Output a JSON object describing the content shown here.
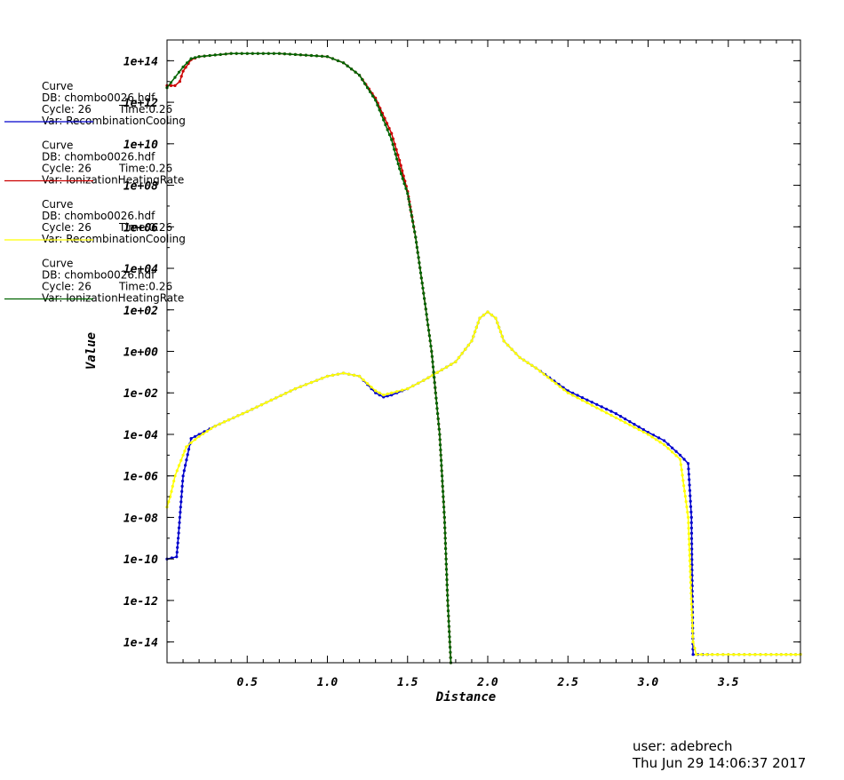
{
  "chart_data": {
    "type": "line",
    "xlabel": "Distance",
    "ylabel": "Value",
    "yscale": "log",
    "xlim": [
      0.0,
      3.95
    ],
    "ylim_exp": [
      -15,
      15
    ],
    "x_ticks": [
      "0.5",
      "1.0",
      "1.5",
      "2.0",
      "2.5",
      "3.0",
      "3.5"
    ],
    "y_ticks": [
      "1e-14",
      "1e-12",
      "1e-10",
      "1e-08",
      "1e-06",
      "1e-04",
      "1e-02",
      "1e+00",
      "1e+02",
      "1e+04",
      "1e+06",
      "1e+08",
      "1e+10",
      "1e+12",
      "1e+14"
    ],
    "legend_placement": "left, outside plot",
    "legend": [
      {
        "title": "Curve",
        "db": "DB: chombo0026.hdf",
        "cycle": "Cycle: 26",
        "time": "Time:0.26",
        "var": "Var: RecombinationCooling",
        "color": "#0000cc"
      },
      {
        "title": "Curve",
        "db": "DB: chombo0026.hdf",
        "cycle": "Cycle: 26",
        "time": "Time:0.26",
        "var": "Var: IonizationHeatingRate",
        "color": "#cc0000"
      },
      {
        "title": "Curve",
        "db": "DB: chombo0026.hdf",
        "cycle": "Cycle: 26",
        "time": "Time:0.26",
        "var": "Var: RecombinationCooling",
        "color": "#ffff00"
      },
      {
        "title": "Curve",
        "db": "DB: chombo0026.hdf",
        "cycle": "Cycle: 26",
        "time": "Time:0.26",
        "var": "Var: IonizationHeatingRate",
        "color": "#006400"
      }
    ],
    "series": [
      {
        "color": "#0000cc",
        "log10_values": true,
        "x": [
          0.0,
          0.06,
          0.07,
          0.1,
          0.15,
          0.2,
          0.3,
          0.5,
          0.8,
          1.0,
          1.1,
          1.2,
          1.3,
          1.35,
          1.4,
          1.5,
          1.6,
          1.8,
          1.9,
          1.95,
          2.0,
          2.05,
          2.1,
          2.2,
          2.3,
          2.5,
          2.8,
          3.0,
          3.1,
          3.2,
          3.25,
          3.27,
          3.28,
          3.4,
          3.6,
          3.8,
          3.95
        ],
        "y": [
          -10.0,
          -9.9,
          -9.0,
          -6.0,
          -4.2,
          -4.0,
          -3.6,
          -2.9,
          -1.8,
          -1.2,
          -1.05,
          -1.2,
          -2.0,
          -2.2,
          -2.1,
          -1.8,
          -1.4,
          -0.5,
          0.5,
          1.6,
          1.9,
          1.6,
          0.5,
          -0.3,
          -0.8,
          -1.9,
          -3.0,
          -3.9,
          -4.3,
          -5.0,
          -5.4,
          -8.0,
          -14.6,
          -14.6,
          -14.6,
          -14.6,
          -14.6
        ]
      },
      {
        "color": "#cc0000",
        "log10_values": true,
        "x": [
          0.0,
          0.05,
          0.08,
          0.1,
          0.15,
          0.2,
          0.4,
          0.7,
          1.0,
          1.1,
          1.2,
          1.3,
          1.4,
          1.45,
          1.5,
          1.55,
          1.6,
          1.65,
          1.7,
          1.73,
          1.75,
          1.77
        ],
        "y": [
          12.8,
          12.8,
          13.0,
          13.5,
          14.05,
          14.2,
          14.35,
          14.35,
          14.2,
          13.9,
          13.3,
          12.2,
          10.5,
          9.2,
          7.7,
          5.5,
          2.8,
          0.0,
          -4.0,
          -8.0,
          -12.0,
          -15.0
        ]
      },
      {
        "color": "#ffff00",
        "log10_values": true,
        "x": [
          0.0,
          0.02,
          0.05,
          0.1,
          0.12,
          0.15,
          0.2,
          0.3,
          0.5,
          0.8,
          1.0,
          1.1,
          1.2,
          1.3,
          1.35,
          1.4,
          1.5,
          1.6,
          1.8,
          1.9,
          1.95,
          2.0,
          2.05,
          2.1,
          2.2,
          2.3,
          2.5,
          2.8,
          3.0,
          3.1,
          3.2,
          3.25,
          3.28,
          3.3,
          3.4,
          3.6,
          3.8,
          3.95
        ],
        "y": [
          -7.5,
          -7.0,
          -6.0,
          -5.0,
          -4.6,
          -4.4,
          -4.1,
          -3.6,
          -2.9,
          -1.8,
          -1.2,
          -1.05,
          -1.2,
          -1.9,
          -2.1,
          -2.0,
          -1.8,
          -1.4,
          -0.5,
          0.5,
          1.6,
          1.9,
          1.6,
          0.5,
          -0.3,
          -0.8,
          -2.0,
          -3.2,
          -4.0,
          -4.5,
          -5.2,
          -8.0,
          -14.0,
          -14.6,
          -14.6,
          -14.6,
          -14.6,
          -14.6
        ]
      },
      {
        "color": "#006400",
        "log10_values": true,
        "x": [
          0.0,
          0.05,
          0.1,
          0.15,
          0.2,
          0.4,
          0.7,
          1.0,
          1.1,
          1.2,
          1.3,
          1.4,
          1.45,
          1.5,
          1.55,
          1.6,
          1.65,
          1.7,
          1.73,
          1.75,
          1.77
        ],
        "y": [
          12.7,
          13.2,
          13.7,
          14.1,
          14.2,
          14.35,
          14.35,
          14.2,
          13.9,
          13.3,
          12.1,
          10.2,
          8.8,
          7.6,
          5.5,
          2.8,
          0.0,
          -4.0,
          -8.0,
          -12.0,
          -15.0
        ]
      }
    ]
  },
  "footer": {
    "user": "user: adebrech",
    "timestamp": "Thu Jun 29 14:06:37 2017"
  }
}
